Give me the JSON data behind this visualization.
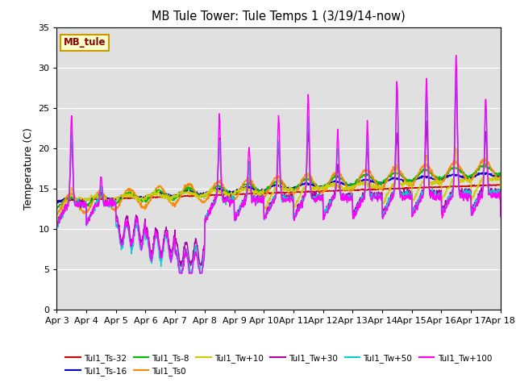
{
  "title": "MB Tule Tower: Tule Temps 1 (3/19/14-now)",
  "ylabel": "Temperature (C)",
  "ylim": [
    0,
    35
  ],
  "yticks": [
    0,
    5,
    10,
    15,
    20,
    25,
    30,
    35
  ],
  "xtick_labels": [
    "Apr 3",
    "Apr 4",
    "Apr 5",
    "Apr 6",
    "Apr 7",
    "Apr 8",
    "Apr 9",
    "Apr 10",
    "Apr 11",
    "Apr 12",
    "Apr 13",
    "Apr 14",
    "Apr 15",
    "Apr 16",
    "Apr 17",
    "Apr 18"
  ],
  "bg_color": "#e0e0e0",
  "fig_color": "#ffffff",
  "series": {
    "Tul1_Ts-32": {
      "color": "#cc0000",
      "lw": 1.0
    },
    "Tul1_Ts-16": {
      "color": "#0000cc",
      "lw": 1.0
    },
    "Tul1_Ts-8": {
      "color": "#00bb00",
      "lw": 1.0
    },
    "Tul1_Ts0": {
      "color": "#ff8800",
      "lw": 1.0
    },
    "Tul1_Tw+10": {
      "color": "#cccc00",
      "lw": 1.0
    },
    "Tul1_Tw+30": {
      "color": "#aa00aa",
      "lw": 1.0
    },
    "Tul1_Tw+50": {
      "color": "#00cccc",
      "lw": 1.0
    },
    "Tul1_Tw+100": {
      "color": "#ff00ff",
      "lw": 1.0
    }
  },
  "legend_box_text": "MB_tule",
  "legend_box_color": "#ffffcc",
  "legend_box_border": "#cc9900"
}
